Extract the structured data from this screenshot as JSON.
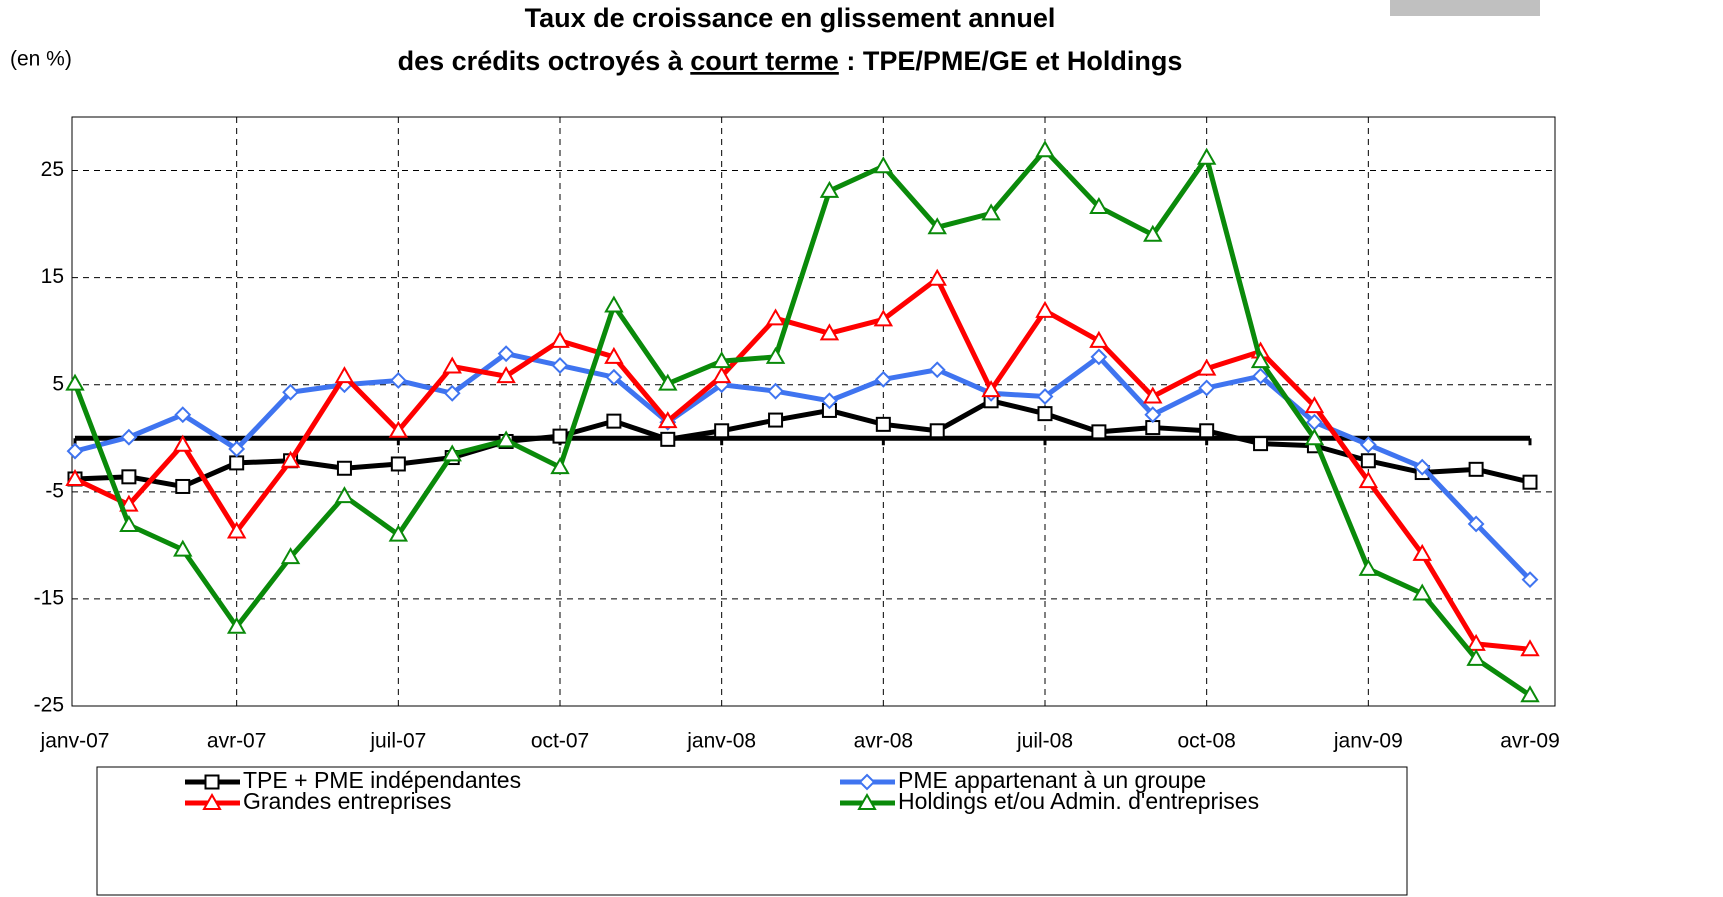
{
  "chart_data": {
    "type": "line",
    "title": [
      "Taux de croissance en glissement annuel",
      [
        "des crédits octroyés à ",
        "court terme",
        " : TPE/PME/GE et Holdings"
      ]
    ],
    "ylabel": "(en %)",
    "categories": [
      "janv-07",
      null,
      null,
      "avr-07",
      null,
      null,
      "juil-07",
      null,
      null,
      "oct-07",
      null,
      null,
      "janv-08",
      null,
      null,
      "avr-08",
      null,
      null,
      "juil-08",
      null,
      null,
      "oct-08",
      null,
      null,
      "janv-09",
      null,
      null,
      "avr-09"
    ],
    "ylim": [
      -25,
      30
    ],
    "yticks": [
      -25,
      -15,
      -5,
      5,
      15,
      25
    ],
    "grid": true,
    "reference_line": 0,
    "series": [
      {
        "name": "TPE + PME indépendantes",
        "color": "#000000",
        "marker": "square",
        "values": [
          -3.8,
          -3.6,
          -4.5,
          -2.3,
          -2.1,
          -2.8,
          -2.4,
          -1.8,
          -0.3,
          0.2,
          1.6,
          -0.1,
          0.7,
          1.7,
          2.6,
          1.3,
          0.7,
          3.5,
          2.3,
          0.6,
          1.0,
          0.7,
          -0.5,
          -0.7,
          -2.1,
          -3.2,
          -2.9,
          -4.1
        ]
      },
      {
        "name": "PME appartenant à un groupe",
        "color": "#3f74f0",
        "marker": "diamond",
        "values": [
          -1.2,
          0.1,
          2.2,
          -1.0,
          4.3,
          5.0,
          5.4,
          4.2,
          7.9,
          6.8,
          5.7,
          1.5,
          5.0,
          4.4,
          3.5,
          5.5,
          6.4,
          4.2,
          3.9,
          7.6,
          2.2,
          4.7,
          5.8,
          1.5,
          -0.6,
          -2.7,
          -8.0,
          -13.2
        ]
      },
      {
        "name": "Grandes entreprises",
        "color": "#ff0000",
        "marker": "triangle",
        "values": [
          -3.8,
          -6.2,
          -0.6,
          -8.7,
          -2.1,
          5.8,
          0.7,
          6.7,
          5.8,
          9.1,
          7.6,
          1.6,
          5.8,
          11.2,
          9.8,
          11.1,
          14.9,
          4.5,
          11.9,
          9.1,
          3.9,
          6.5,
          8.1,
          3.0,
          -4.0,
          -10.8,
          -19.2,
          -19.7
        ]
      },
      {
        "name": "Holdings et/ou Admin. d'entreprises",
        "color": "#0a8a0a",
        "marker": "triangle",
        "values": [
          5.1,
          -8.1,
          -10.4,
          -17.6,
          -11.1,
          -5.4,
          -9.0,
          -1.5,
          -0.2,
          -2.7,
          12.4,
          5.1,
          7.2,
          7.6,
          23.1,
          25.4,
          19.7,
          21.0,
          26.9,
          21.6,
          19.0,
          26.2,
          7.2,
          0.0,
          -12.2,
          -14.5,
          -20.6,
          -24.0
        ]
      }
    ]
  }
}
